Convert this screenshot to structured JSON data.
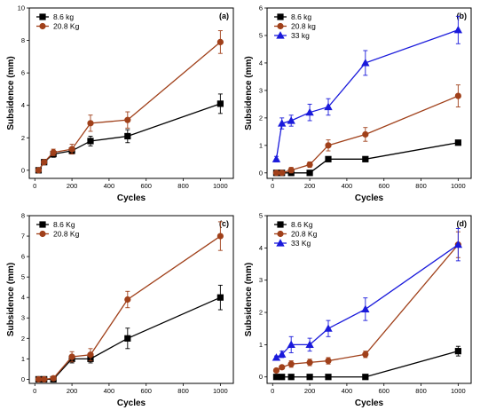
{
  "figure": {
    "background": "#ffffff",
    "axis_color": "#000000"
  },
  "chart_data": [
    {
      "type": "line",
      "panel_label": "(a)",
      "xlabel": "Cycles",
      "ylabel": "Subsidence (mm)",
      "xlim": [
        -30,
        1070
      ],
      "ylim": [
        -0.5,
        10
      ],
      "xticks": [
        0,
        200,
        400,
        600,
        800,
        1000
      ],
      "yticks": [
        0,
        2,
        4,
        6,
        8,
        10
      ],
      "grid": false,
      "legend_position": "top-left",
      "x": [
        20,
        50,
        100,
        200,
        300,
        500,
        1000
      ],
      "series": [
        {
          "name": "8.6 kg",
          "color": "#000000",
          "marker": "square",
          "values": [
            0,
            0.5,
            1.0,
            1.2,
            1.8,
            2.1,
            4.1
          ],
          "errors": [
            0,
            0.05,
            0.2,
            0.2,
            0.3,
            0.4,
            0.6
          ]
        },
        {
          "name": "20.8 Kg",
          "color": "#a0401a",
          "marker": "circle",
          "values": [
            0,
            0.5,
            1.1,
            1.3,
            2.9,
            3.1,
            7.9
          ],
          "errors": [
            0,
            0.05,
            0.2,
            0.3,
            0.5,
            0.5,
            0.7
          ]
        }
      ]
    },
    {
      "type": "line",
      "panel_label": "(b)",
      "xlabel": "Cycles",
      "ylabel": "Subsidence (mm)",
      "xlim": [
        -30,
        1070
      ],
      "ylim": [
        -0.2,
        6
      ],
      "xticks": [
        0,
        200,
        400,
        600,
        800,
        1000
      ],
      "yticks": [
        0,
        1,
        2,
        3,
        4,
        5,
        6
      ],
      "grid": false,
      "legend_position": "top-left",
      "x": [
        20,
        50,
        100,
        200,
        300,
        500,
        1000
      ],
      "series": [
        {
          "name": "8.6 kg",
          "color": "#000000",
          "marker": "square",
          "values": [
            0,
            0,
            0,
            0,
            0.5,
            0.5,
            1.1
          ],
          "errors": [
            0,
            0,
            0,
            0,
            0,
            0,
            0.05
          ]
        },
        {
          "name": "20.8 kg",
          "color": "#a0401a",
          "marker": "circle",
          "values": [
            0,
            0,
            0.1,
            0.3,
            1.0,
            1.4,
            2.8
          ],
          "errors": [
            0,
            0,
            0.1,
            0.1,
            0.2,
            0.25,
            0.4
          ]
        },
        {
          "name": "33 kg",
          "color": "#1a1adb",
          "marker": "triangle",
          "values": [
            0.5,
            1.8,
            1.9,
            2.2,
            2.4,
            4.0,
            5.2
          ],
          "errors": [
            0.1,
            0.2,
            0.2,
            0.3,
            0.3,
            0.45,
            0.5
          ]
        }
      ]
    },
    {
      "type": "line",
      "panel_label": "(c)",
      "xlabel": "Cycles",
      "ylabel": "Subsidence (mm)",
      "xlim": [
        -30,
        1070
      ],
      "ylim": [
        -0.2,
        8
      ],
      "xticks": [
        0,
        200,
        400,
        600,
        800,
        1000
      ],
      "yticks": [
        0,
        1,
        2,
        3,
        4,
        5,
        6,
        7,
        8
      ],
      "grid": false,
      "legend_position": "top-left",
      "x": [
        20,
        50,
        100,
        200,
        300,
        500,
        1000
      ],
      "series": [
        {
          "name": "8.6 Kg",
          "color": "#000000",
          "marker": "square",
          "values": [
            0,
            0,
            0,
            1.0,
            1.0,
            2.0,
            4.0
          ],
          "errors": [
            0,
            0,
            0.1,
            0.2,
            0.2,
            0.5,
            0.6
          ]
        },
        {
          "name": "20.8 Kg",
          "color": "#a0401a",
          "marker": "circle",
          "values": [
            0,
            0,
            0.05,
            1.1,
            1.2,
            3.9,
            7.0
          ],
          "errors": [
            0,
            0,
            0.1,
            0.25,
            0.3,
            0.4,
            0.7
          ]
        }
      ]
    },
    {
      "type": "line",
      "panel_label": "(d)",
      "xlabel": "Cycles",
      "ylabel": "Subsidence (mm)",
      "xlim": [
        -30,
        1070
      ],
      "ylim": [
        -0.2,
        5
      ],
      "xticks": [
        0,
        200,
        400,
        600,
        800,
        1000
      ],
      "yticks": [
        0,
        1,
        2,
        3,
        4,
        5
      ],
      "grid": false,
      "legend_position": "top-left",
      "x": [
        20,
        50,
        100,
        200,
        300,
        500,
        1000
      ],
      "series": [
        {
          "name": "8.6 Kg",
          "color": "#000000",
          "marker": "square",
          "values": [
            0,
            0,
            0,
            0,
            0,
            0,
            0.8
          ],
          "errors": [
            0,
            0,
            0,
            0,
            0,
            0,
            0.15
          ]
        },
        {
          "name": "20.8 Kg",
          "color": "#a0401a",
          "marker": "circle",
          "values": [
            0.2,
            0.3,
            0.4,
            0.45,
            0.5,
            0.7,
            4.1
          ],
          "errors": [
            0.05,
            0.05,
            0.1,
            0.1,
            0.1,
            0.1,
            0.4
          ]
        },
        {
          "name": "33 Kg",
          "color": "#1a1adb",
          "marker": "triangle",
          "values": [
            0.6,
            0.7,
            1.0,
            1.0,
            1.5,
            2.1,
            4.1
          ],
          "errors": [
            0.05,
            0.1,
            0.25,
            0.2,
            0.25,
            0.35,
            0.5
          ]
        }
      ]
    }
  ]
}
